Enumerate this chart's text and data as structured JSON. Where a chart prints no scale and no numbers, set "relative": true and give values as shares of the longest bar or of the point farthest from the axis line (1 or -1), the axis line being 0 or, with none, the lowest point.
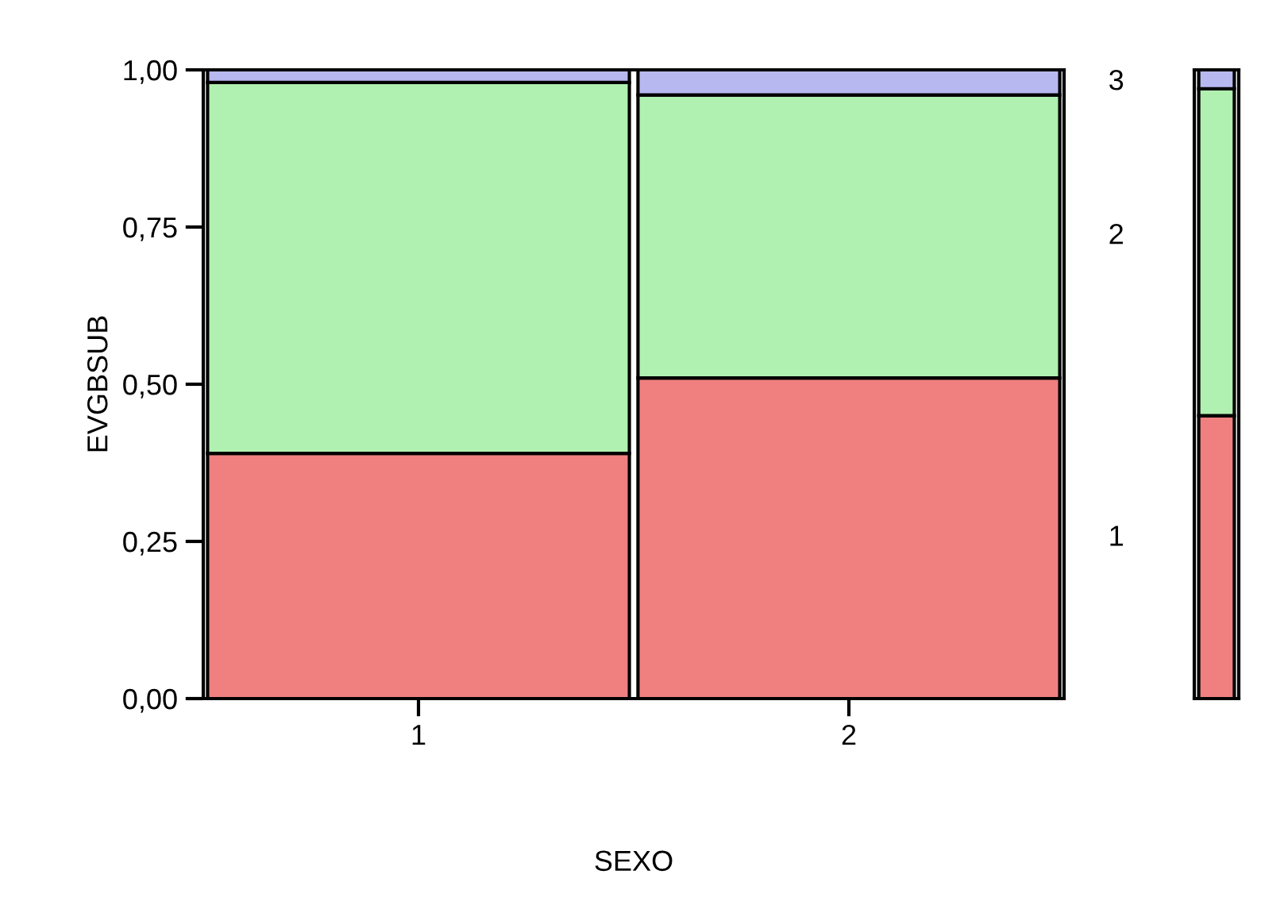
{
  "chart_data": [
    {
      "type": "bar",
      "stacked": true,
      "xlabel": "SEXO",
      "ylabel": "EVGBSUB",
      "categories": [
        "1",
        "2"
      ],
      "ylim": [
        0,
        1
      ],
      "yticks": [
        {
          "value": 0,
          "label": "0,00"
        },
        {
          "value": 0.25,
          "label": "0,25"
        },
        {
          "value": 0.5,
          "label": "0,50"
        },
        {
          "value": 0.75,
          "label": "0,75"
        },
        {
          "value": 1,
          "label": "1,00"
        }
      ],
      "series": [
        {
          "name": "1",
          "color": "#f08080",
          "values": [
            0.39,
            0.51
          ]
        },
        {
          "name": "2",
          "color": "#b0f0b0",
          "values": [
            0.59,
            0.45
          ]
        },
        {
          "name": "3",
          "color": "#b8b8f0",
          "values": [
            0.02,
            0.04
          ]
        }
      ],
      "grid": false,
      "legend": false
    },
    {
      "type": "bar",
      "stacked": true,
      "relative": true,
      "categories": [
        null
      ],
      "tick_labels": false,
      "series": [
        {
          "color": "#f08080",
          "values": [
            0.45
          ]
        },
        {
          "color": "#b0f0b0",
          "values": [
            0.52
          ]
        },
        {
          "color": "#b8b8f0",
          "values": [
            0.03
          ]
        }
      ],
      "grid": false,
      "legend": false
    }
  ]
}
